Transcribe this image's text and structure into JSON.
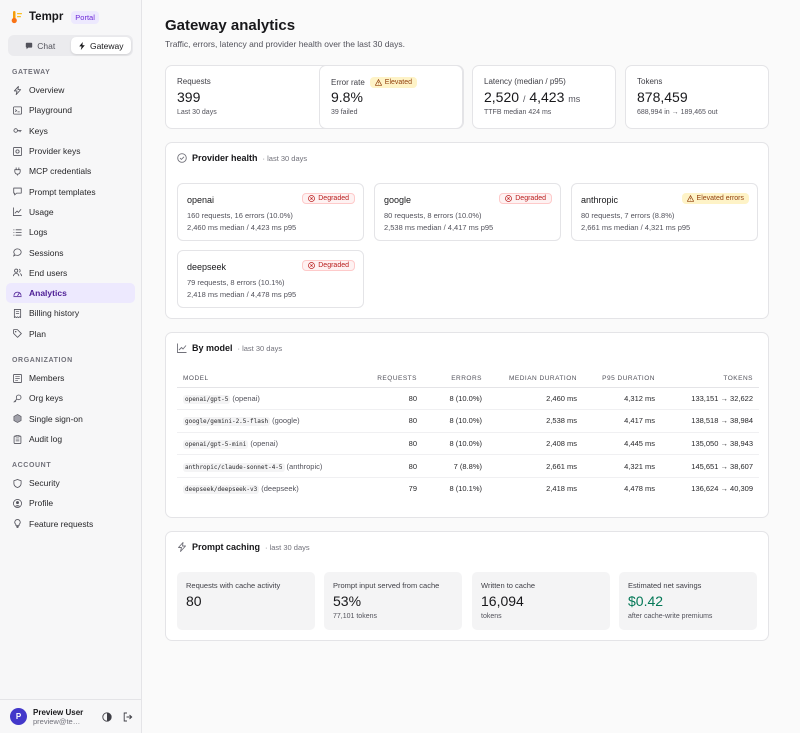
{
  "brand": {
    "name": "Tempr",
    "badge": "Portal"
  },
  "mode_switch": {
    "chat": "Chat",
    "gateway": "Gateway"
  },
  "sidebar": {
    "gateway_title": "GATEWAY",
    "gateway_items": [
      {
        "label": "Overview",
        "icon": "lightning-icon"
      },
      {
        "label": "Playground",
        "icon": "terminal-icon"
      },
      {
        "label": "Keys",
        "icon": "key-icon"
      },
      {
        "label": "Provider keys",
        "icon": "vault-icon"
      },
      {
        "label": "MCP credentials",
        "icon": "plug-icon"
      },
      {
        "label": "Prompt templates",
        "icon": "message-icon"
      },
      {
        "label": "Usage",
        "icon": "chart-line-icon"
      },
      {
        "label": "Logs",
        "icon": "logs-icon"
      },
      {
        "label": "Sessions",
        "icon": "chat-bubble-icon"
      },
      {
        "label": "End users",
        "icon": "users-icon"
      },
      {
        "label": "Analytics",
        "icon": "gauge-icon",
        "active": true
      },
      {
        "label": "Billing history",
        "icon": "receipt-icon"
      },
      {
        "label": "Plan",
        "icon": "tag-icon"
      }
    ],
    "org_title": "ORGANIZATION",
    "org_items": [
      {
        "label": "Members",
        "icon": "members-icon"
      },
      {
        "label": "Org keys",
        "icon": "key-round-icon"
      },
      {
        "label": "Single sign-on",
        "icon": "hexagon-icon"
      },
      {
        "label": "Audit log",
        "icon": "clipboard-icon"
      }
    ],
    "account_title": "ACCOUNT",
    "account_items": [
      {
        "label": "Security",
        "icon": "shield-icon"
      },
      {
        "label": "Profile",
        "icon": "user-circle-icon"
      },
      {
        "label": "Feature requests",
        "icon": "lightbulb-icon"
      }
    ]
  },
  "user": {
    "initial": "P",
    "name": "Preview User",
    "email": "preview@tem..."
  },
  "page": {
    "title": "Gateway analytics",
    "subtitle": "Traffic, errors, latency and provider health over the last 30 days."
  },
  "stats": {
    "requests": {
      "label": "Requests",
      "value": "399",
      "sub": "Last 30 days"
    },
    "error_rate": {
      "label": "Error rate",
      "badge": "Elevated",
      "value": "9.8%",
      "sub": "39 failed"
    },
    "latency": {
      "label": "Latency (median / p95)",
      "median": "2,520",
      "sep": "/",
      "p95": "4,423",
      "unit": "ms",
      "sub": "TTFB median 424 ms"
    },
    "tokens": {
      "label": "Tokens",
      "value": "878,459",
      "sub": "688,994 in → 189,465 out"
    }
  },
  "provider_health": {
    "title": "Provider health",
    "period": "· last 30 days",
    "providers": [
      {
        "name": "openai",
        "badge": "Degraded",
        "badge_kind": "err",
        "line1": "160 requests, 16 errors (10.0%)",
        "line2": "2,460 ms median / 4,423 ms p95"
      },
      {
        "name": "google",
        "badge": "Degraded",
        "badge_kind": "err",
        "line1": "80 requests, 8 errors (10.0%)",
        "line2": "2,538 ms median / 4,417 ms p95"
      },
      {
        "name": "anthropic",
        "badge": "Elevated errors",
        "badge_kind": "warn",
        "line1": "80 requests, 7 errors (8.8%)",
        "line2": "2,661 ms median / 4,321 ms p95"
      },
      {
        "name": "deepseek",
        "badge": "Degraded",
        "badge_kind": "err",
        "line1": "79 requests, 8 errors (10.1%)",
        "line2": "2,418 ms median / 4,478 ms p95"
      }
    ]
  },
  "by_model": {
    "title": "By model",
    "period": "· last 30 days",
    "columns": [
      "MODEL",
      "REQUESTS",
      "ERRORS",
      "MEDIAN DURATION",
      "P95 DURATION",
      "TOKENS"
    ],
    "rows": [
      {
        "model": "openai/gpt-5",
        "provider": "(openai)",
        "requests": "80",
        "errors": "8 (10.0%)",
        "median": "2,460 ms",
        "p95": "4,312 ms",
        "tokens": "133,151 → 32,622"
      },
      {
        "model": "google/gemini-2.5-flash",
        "provider": "(google)",
        "requests": "80",
        "errors": "8 (10.0%)",
        "median": "2,538 ms",
        "p95": "4,417 ms",
        "tokens": "138,518 → 38,984"
      },
      {
        "model": "openai/gpt-5-mini",
        "provider": "(openai)",
        "requests": "80",
        "errors": "8 (10.0%)",
        "median": "2,408 ms",
        "p95": "4,445 ms",
        "tokens": "135,050 → 38,943"
      },
      {
        "model": "anthropic/claude-sonnet-4-5",
        "provider": "(anthropic)",
        "requests": "80",
        "errors": "7 (8.8%)",
        "median": "2,661 ms",
        "p95": "4,321 ms",
        "tokens": "145,651 → 38,607"
      },
      {
        "model": "deepseek/deepseek-v3",
        "provider": "(deepseek)",
        "requests": "79",
        "errors": "8 (10.1%)",
        "median": "2,418 ms",
        "p95": "4,478 ms",
        "tokens": "136,624 → 40,309"
      }
    ]
  },
  "prompt_caching": {
    "title": "Prompt caching",
    "period": "· last 30 days",
    "tiles": [
      {
        "label": "Requests with cache activity",
        "value": "80",
        "sub": ""
      },
      {
        "label": "Prompt input served from cache",
        "value": "53%",
        "sub": "77,101 tokens"
      },
      {
        "label": "Written to cache",
        "value": "16,094",
        "sub": "tokens"
      },
      {
        "label": "Estimated net savings",
        "value": "$0.42",
        "sub": "after cache-write premiums",
        "color": "#047857"
      }
    ]
  },
  "colors": {
    "accent": "#6d28d9",
    "active_bg": "#ede9fe",
    "error": "#b91c1c",
    "warning": "#92400e",
    "savings": "#047857"
  }
}
